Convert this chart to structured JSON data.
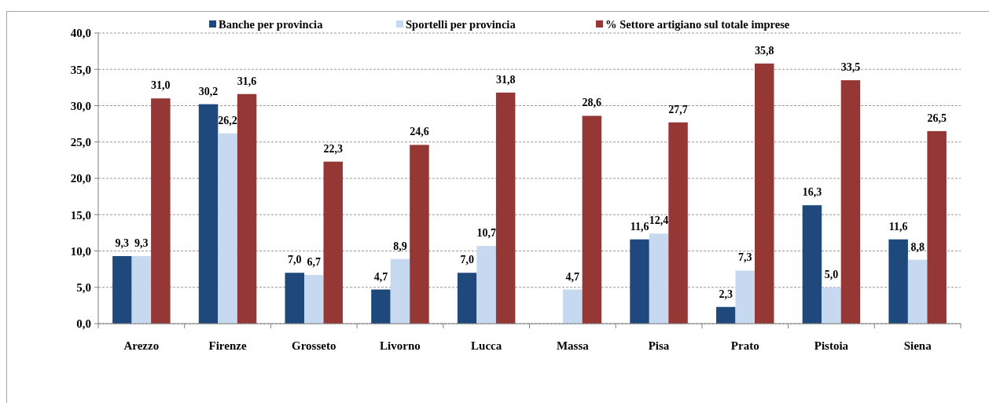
{
  "chart_data": {
    "type": "bar",
    "categories": [
      "Arezzo",
      "Firenze",
      "Grosseto",
      "Livorno",
      "Lucca",
      "Massa",
      "Pisa",
      "Prato",
      "Pistoia",
      "Siena"
    ],
    "series": [
      {
        "name": "Banche per provincia",
        "color": "#1f497d",
        "values": [
          9.3,
          30.2,
          7.0,
          4.7,
          7.0,
          null,
          11.6,
          2.3,
          16.3,
          11.6
        ],
        "value_labels": [
          "9,3",
          "30,2",
          "7,0",
          "4,7",
          "7,0",
          null,
          "11,6",
          "2,3",
          "16,3",
          "11,6"
        ]
      },
      {
        "name": "Sportelli per provincia",
        "color": "#c6d9f1",
        "values": [
          9.3,
          26.2,
          6.7,
          8.9,
          10.7,
          4.7,
          12.4,
          7.3,
          5.0,
          8.8
        ],
        "value_labels": [
          "9,3",
          "26,2",
          "6,7",
          "8,9",
          "10,7",
          "4,7",
          "12,4",
          "7,3",
          "5,0",
          "8,8"
        ]
      },
      {
        "name": "% Settore artigiano sul totale imprese",
        "color": "#953735",
        "values": [
          31.0,
          31.6,
          22.3,
          24.6,
          31.8,
          28.6,
          27.7,
          35.8,
          33.5,
          26.5
        ],
        "value_labels": [
          "31,0",
          "31,6",
          "22,3",
          "24,6",
          "31,8",
          "28,6",
          "27,7",
          "35,8",
          "33,5",
          "26,5"
        ]
      }
    ],
    "ylim": [
      0,
      40
    ],
    "yticks": [
      {
        "value": 0,
        "label": "0,0"
      },
      {
        "value": 5,
        "label": "5,0"
      },
      {
        "value": 10,
        "label": "10,0"
      },
      {
        "value": 15,
        "label": "15,0"
      },
      {
        "value": 20,
        "label": "20,0"
      },
      {
        "value": 25,
        "label": "25,0"
      },
      {
        "value": 30,
        "label": "30,0"
      },
      {
        "value": 35,
        "label": "35,0"
      },
      {
        "value": 40,
        "label": "40,0"
      }
    ],
    "grid": "y",
    "legend": "top"
  }
}
